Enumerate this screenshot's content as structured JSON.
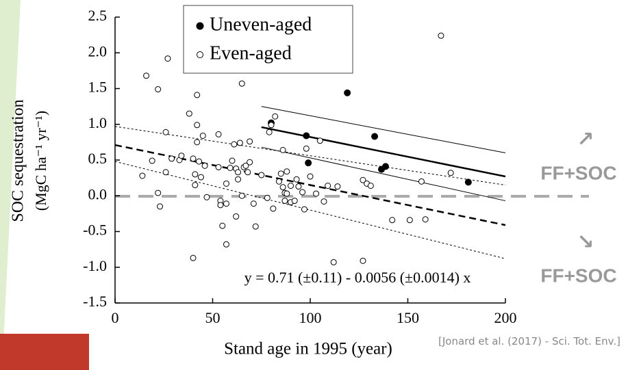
{
  "chart_data": {
    "type": "scatter",
    "xlabel": "Stand age in 1995 (year)",
    "ylabel": [
      "SOC sequestration",
      "(MgC ha⁻¹ yr⁻¹)"
    ],
    "xlim": [
      0,
      200
    ],
    "ylim": [
      -1.5,
      2.5
    ],
    "xticks": [
      0,
      50,
      100,
      150,
      200
    ],
    "yticks": [
      2.5,
      {
        "value": 2,
        "label": "2.0"
      },
      1.5,
      {
        "value": 1,
        "label": "1.0"
      },
      0.5,
      {
        "value": 0,
        "label": "0.0"
      },
      -0.5,
      {
        "value": -1,
        "label": "-1.0"
      },
      -1.5
    ],
    "legend": "top",
    "series": [
      {
        "name": "Uneven-aged",
        "color": "#000000",
        "marker": "filled",
        "x": [
          80,
          98,
          99,
          119,
          133,
          136.5,
          138.6,
          181
        ],
        "values": [
          1.02,
          0.84,
          0.46,
          1.44,
          0.83,
          0.37,
          0.41,
          0.19
        ]
      },
      {
        "name": "Even-aged",
        "color": "#000000",
        "marker": "open",
        "x": [
          16,
          22,
          27,
          14,
          19,
          22,
          23,
          26,
          26,
          29,
          33,
          34,
          38,
          40,
          41,
          42,
          42,
          42,
          43,
          41,
          44,
          45,
          46,
          47,
          40,
          53,
          53,
          54,
          54,
          55,
          57,
          57,
          57,
          59,
          60,
          61,
          62,
          62,
          63,
          63,
          64,
          65,
          65,
          66,
          67,
          68,
          69,
          69,
          71,
          72,
          75,
          79,
          80,
          82,
          78,
          81,
          84,
          85,
          86,
          86,
          87,
          87,
          88,
          88,
          90,
          90,
          92,
          93,
          94,
          96,
          97,
          98,
          100,
          103,
          105,
          107,
          109,
          112,
          114,
          127,
          127,
          129,
          131,
          142,
          151,
          157,
          159,
          167,
          172
        ],
        "values": [
          1.68,
          1.49,
          1.92,
          0.28,
          0.49,
          0.04,
          -0.15,
          0.89,
          0.33,
          0.52,
          0.5,
          0.56,
          1.15,
          0.52,
          0.15,
          0.99,
          1.41,
          0.75,
          0.48,
          0.3,
          0.26,
          0.84,
          0.42,
          -0.02,
          -0.87,
          0.4,
          0.86,
          -0.07,
          -0.13,
          -0.42,
          0.17,
          -0.11,
          -0.68,
          0.39,
          0.49,
          0.72,
          0.38,
          -0.29,
          0.23,
          0.33,
          0.74,
          1.57,
          0.0,
          0.4,
          0.42,
          0.33,
          0.76,
          0.47,
          -0.11,
          -0.43,
          0.29,
          0.89,
          0.99,
          1.11,
          -0.03,
          -0.18,
          0.2,
          0.31,
          0.64,
          0.12,
          -0.07,
          0.04,
          0.03,
          0.34,
          0.14,
          -0.09,
          -0.07,
          0.23,
          0.13,
          0.05,
          -0.19,
          0.66,
          0.27,
          0.03,
          0.77,
          -0.08,
          0.14,
          -0.93,
          0.13,
          0.22,
          -0.91,
          0.17,
          0.14,
          -0.34,
          -0.34,
          0.2,
          -0.33,
          2.24,
          0.32
        ]
      }
    ],
    "fit_lines": [
      {
        "x": [
          75,
          200
        ],
        "values": [
          0.96,
          0.27
        ],
        "dash": "solid",
        "width": 2.5
      },
      {
        "x": [
          75,
          200
        ],
        "values": [
          1.25,
          0.6
        ],
        "dash": "solid",
        "width": 1
      },
      {
        "x": [
          75,
          200
        ],
        "values": [
          0.68,
          -0.07
        ],
        "dash": "solid",
        "width": 1
      },
      {
        "x": [
          0,
          200
        ],
        "values": [
          0.71,
          -0.41
        ],
        "dash": "dashed",
        "width": 2.5
      },
      {
        "x": [
          0,
          200
        ],
        "values": [
          0.97,
          0.15
        ],
        "dash": "dotted",
        "width": 1
      },
      {
        "x": [
          0,
          200
        ],
        "values": [
          0.48,
          -0.88
        ],
        "dash": "dotted",
        "width": 1
      }
    ],
    "equation": "y = 0.71 (±0.11) - 0.0056 (±0.0014) x"
  },
  "side_notes": [
    {
      "arrow": "↗",
      "text": "FF+SOC"
    },
    {
      "arrow": "↘",
      "text": "FF+SOC"
    }
  ],
  "citation": "[Jonard et al. (2017) - Sci. Tot. Env.]"
}
